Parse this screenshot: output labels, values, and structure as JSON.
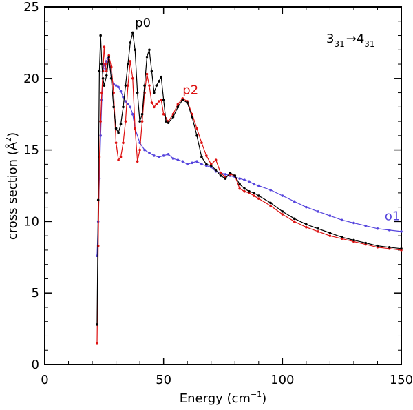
{
  "chart_data": {
    "type": "line",
    "title": "",
    "xlabel": "Energy (cm",
    "xlabel_sup": "−1",
    "xlabel_end": ")",
    "ylabel": "cross section (Å",
    "ylabel_sup": "2",
    "ylabel_end": ")",
    "xlim": [
      0,
      150
    ],
    "ylim": [
      0,
      25
    ],
    "xticks": [
      0,
      50,
      100,
      150
    ],
    "yticks": [
      0,
      5,
      10,
      15,
      20,
      25
    ],
    "annotation": {
      "from_main": "3",
      "from_sub": "31",
      "arrow": "→",
      "to_main": "4",
      "to_sub": "31"
    },
    "series": [
      {
        "name": "p0",
        "color": "#000000",
        "label_at": [
          38,
          23.6
        ],
        "x": [
          22,
          22.5,
          23,
          23.5,
          24,
          24.5,
          25,
          26,
          27,
          28,
          29,
          30,
          31,
          32,
          33,
          34,
          35,
          36,
          37,
          38,
          39,
          40,
          41,
          42,
          43,
          44,
          45,
          46,
          47,
          48,
          49,
          50,
          51,
          52,
          54,
          56,
          58,
          60,
          62,
          64,
          66,
          68,
          70,
          72,
          74,
          76,
          78,
          80,
          82,
          84,
          86,
          88,
          90,
          95,
          100,
          105,
          110,
          115,
          120,
          125,
          130,
          135,
          140,
          145,
          150
        ],
        "values": [
          2.8,
          11.5,
          20.5,
          23.0,
          21.0,
          20.0,
          19.5,
          20.2,
          21.5,
          20.0,
          18.0,
          16.5,
          16.2,
          16.8,
          18.0,
          19.5,
          21.0,
          22.5,
          23.2,
          22.0,
          19.0,
          17.0,
          17.5,
          19.5,
          21.5,
          22.0,
          20.5,
          19.0,
          19.5,
          19.8,
          20.1,
          18.5,
          17.0,
          16.9,
          17.3,
          18.0,
          18.5,
          18.3,
          17.3,
          16.0,
          14.5,
          14.0,
          13.9,
          13.6,
          13.2,
          13.0,
          13.4,
          13.2,
          12.6,
          12.3,
          12.1,
          12.0,
          11.8,
          11.3,
          10.7,
          10.2,
          9.8,
          9.5,
          9.2,
          8.9,
          8.7,
          8.5,
          8.3,
          8.2,
          8.1
        ]
      },
      {
        "name": "p2",
        "color": "#dd1111",
        "label_at": [
          58,
          18.9
        ],
        "x": [
          22,
          22.5,
          23,
          23.5,
          24,
          24.5,
          25,
          25.5,
          26,
          27,
          28,
          29,
          30,
          31,
          32,
          33,
          34,
          35,
          36,
          37,
          38,
          39,
          40,
          41,
          42,
          43,
          44,
          45,
          46,
          47,
          48,
          49,
          50,
          51,
          52,
          54,
          56,
          58,
          60,
          62,
          64,
          66,
          68,
          70,
          72,
          74,
          76,
          78,
          80,
          82,
          84,
          86,
          88,
          90,
          95,
          100,
          105,
          110,
          115,
          120,
          125,
          130,
          135,
          140,
          145,
          150
        ],
        "values": [
          1.5,
          8.3,
          14.5,
          17.0,
          19.0,
          20.5,
          22.2,
          21.0,
          20.5,
          21.6,
          20.8,
          19.0,
          15.5,
          14.3,
          14.5,
          15.5,
          17.0,
          19.5,
          21.2,
          20.0,
          16.5,
          14.2,
          15.0,
          17.0,
          19.0,
          20.3,
          19.5,
          18.3,
          18.0,
          18.2,
          18.4,
          18.5,
          17.5,
          17.2,
          17.0,
          17.5,
          18.2,
          18.6,
          18.4,
          17.5,
          16.5,
          15.5,
          14.6,
          14.0,
          14.3,
          13.4,
          13.1,
          13.3,
          13.2,
          12.3,
          12.1,
          12.0,
          11.8,
          11.6,
          11.1,
          10.5,
          10.0,
          9.6,
          9.3,
          9.0,
          8.8,
          8.6,
          8.4,
          8.2,
          8.1,
          8.0
        ]
      },
      {
        "name": "o1",
        "color": "#5544dd",
        "label_at": [
          143,
          10.1
        ],
        "x": [
          22,
          22.5,
          23,
          23.5,
          24,
          24.5,
          25,
          25.5,
          26,
          26.5,
          27,
          27.5,
          28,
          29,
          30,
          31,
          32,
          33,
          34,
          35,
          36,
          37,
          38,
          40,
          42,
          44,
          46,
          48,
          50,
          52,
          54,
          56,
          58,
          60,
          62,
          64,
          66,
          68,
          70,
          72,
          74,
          76,
          78,
          80,
          82,
          84,
          86,
          88,
          90,
          95,
          100,
          105,
          110,
          115,
          120,
          125,
          130,
          135,
          140,
          145,
          150
        ],
        "values": [
          7.6,
          10.0,
          13.0,
          16.0,
          18.5,
          20.5,
          21.0,
          20.7,
          21.2,
          21.4,
          21.2,
          20.8,
          20.0,
          19.6,
          19.5,
          19.4,
          19.1,
          18.7,
          18.4,
          18.2,
          18.0,
          17.5,
          16.5,
          15.5,
          15.0,
          14.8,
          14.6,
          14.5,
          14.6,
          14.7,
          14.4,
          14.3,
          14.2,
          14.0,
          14.1,
          14.2,
          14.0,
          13.9,
          13.8,
          13.5,
          13.4,
          13.3,
          13.2,
          13.1,
          13.0,
          12.9,
          12.8,
          12.6,
          12.5,
          12.2,
          11.8,
          11.4,
          11.0,
          10.7,
          10.4,
          10.1,
          9.9,
          9.7,
          9.5,
          9.4,
          9.3
        ]
      }
    ]
  }
}
